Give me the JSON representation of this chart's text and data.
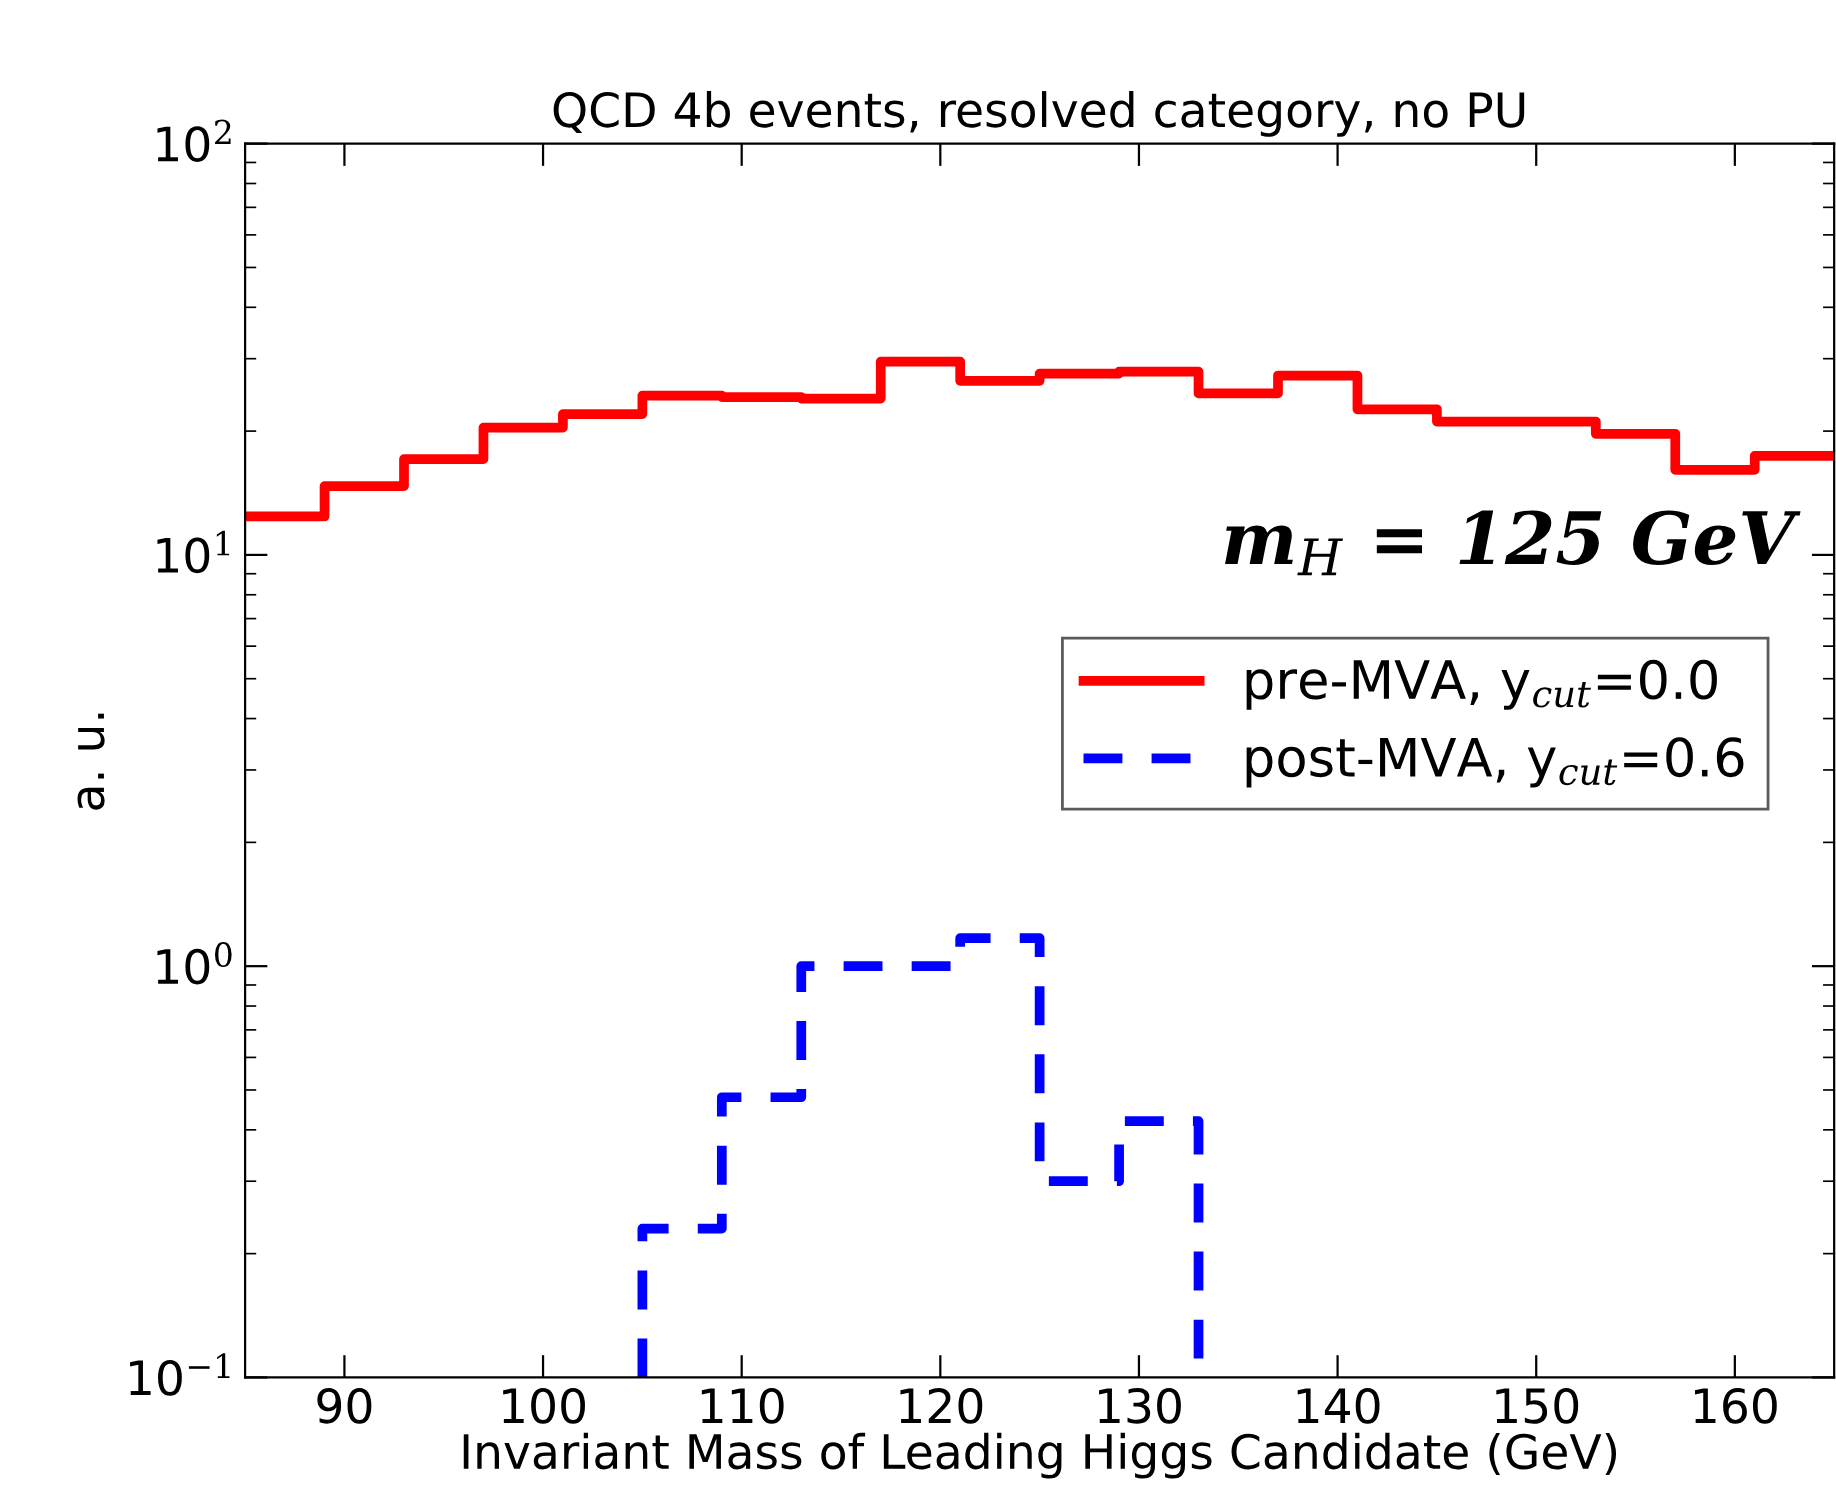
{
  "chart_data": {
    "type": "histogram",
    "title": "QCD 4b events, resolved category, no PU",
    "xlabel": "Invariant Mass of Leading Higgs Candidate (GeV)",
    "ylabel": "a. u.",
    "bins": [
      85,
      89,
      93,
      97,
      101,
      105,
      109,
      113,
      117,
      121,
      125,
      129,
      133,
      137,
      141,
      145,
      149,
      153,
      157,
      161,
      165
    ],
    "series": [
      {
        "name": "pre-MVA, y$_{cut}$=0.0",
        "color": "#ff0000",
        "line_style": "solid",
        "values": [
          12.4,
          14.7,
          17.1,
          20.4,
          22.0,
          24.4,
          24.2,
          24.0,
          29.5,
          26.5,
          27.6,
          27.9,
          24.7,
          27.3,
          22.6,
          21.1,
          21.1,
          19.7,
          16.1,
          17.4
        ]
      },
      {
        "name": "post-MVA, y$_{cut}$=0.6",
        "color": "#0000ff",
        "line_style": "dashed",
        "bins": [
          105,
          109,
          113,
          117,
          121,
          125,
          129,
          133
        ],
        "values": [
          0.23,
          0.48,
          1.0,
          1.0,
          1.17,
          0.3,
          0.42
        ]
      }
    ],
    "annotations": [
      "m$_{H}$ = 125 GeV"
    ],
    "log": "y",
    "xlim": [
      85,
      165
    ],
    "ylim": [
      0.1,
      100
    ],
    "xticks": [
      90,
      100,
      110,
      120,
      130,
      140,
      150,
      160
    ],
    "yticks": [
      {
        "value": 0.1,
        "label": "10$^{−1}$"
      },
      {
        "value": 1,
        "label": "10$^{0}$"
      },
      {
        "value": 10,
        "label": "10$^{1}$"
      },
      {
        "value": 100,
        "label": "10$^{2}$"
      }
    ],
    "grid": false,
    "legend": "right"
  }
}
